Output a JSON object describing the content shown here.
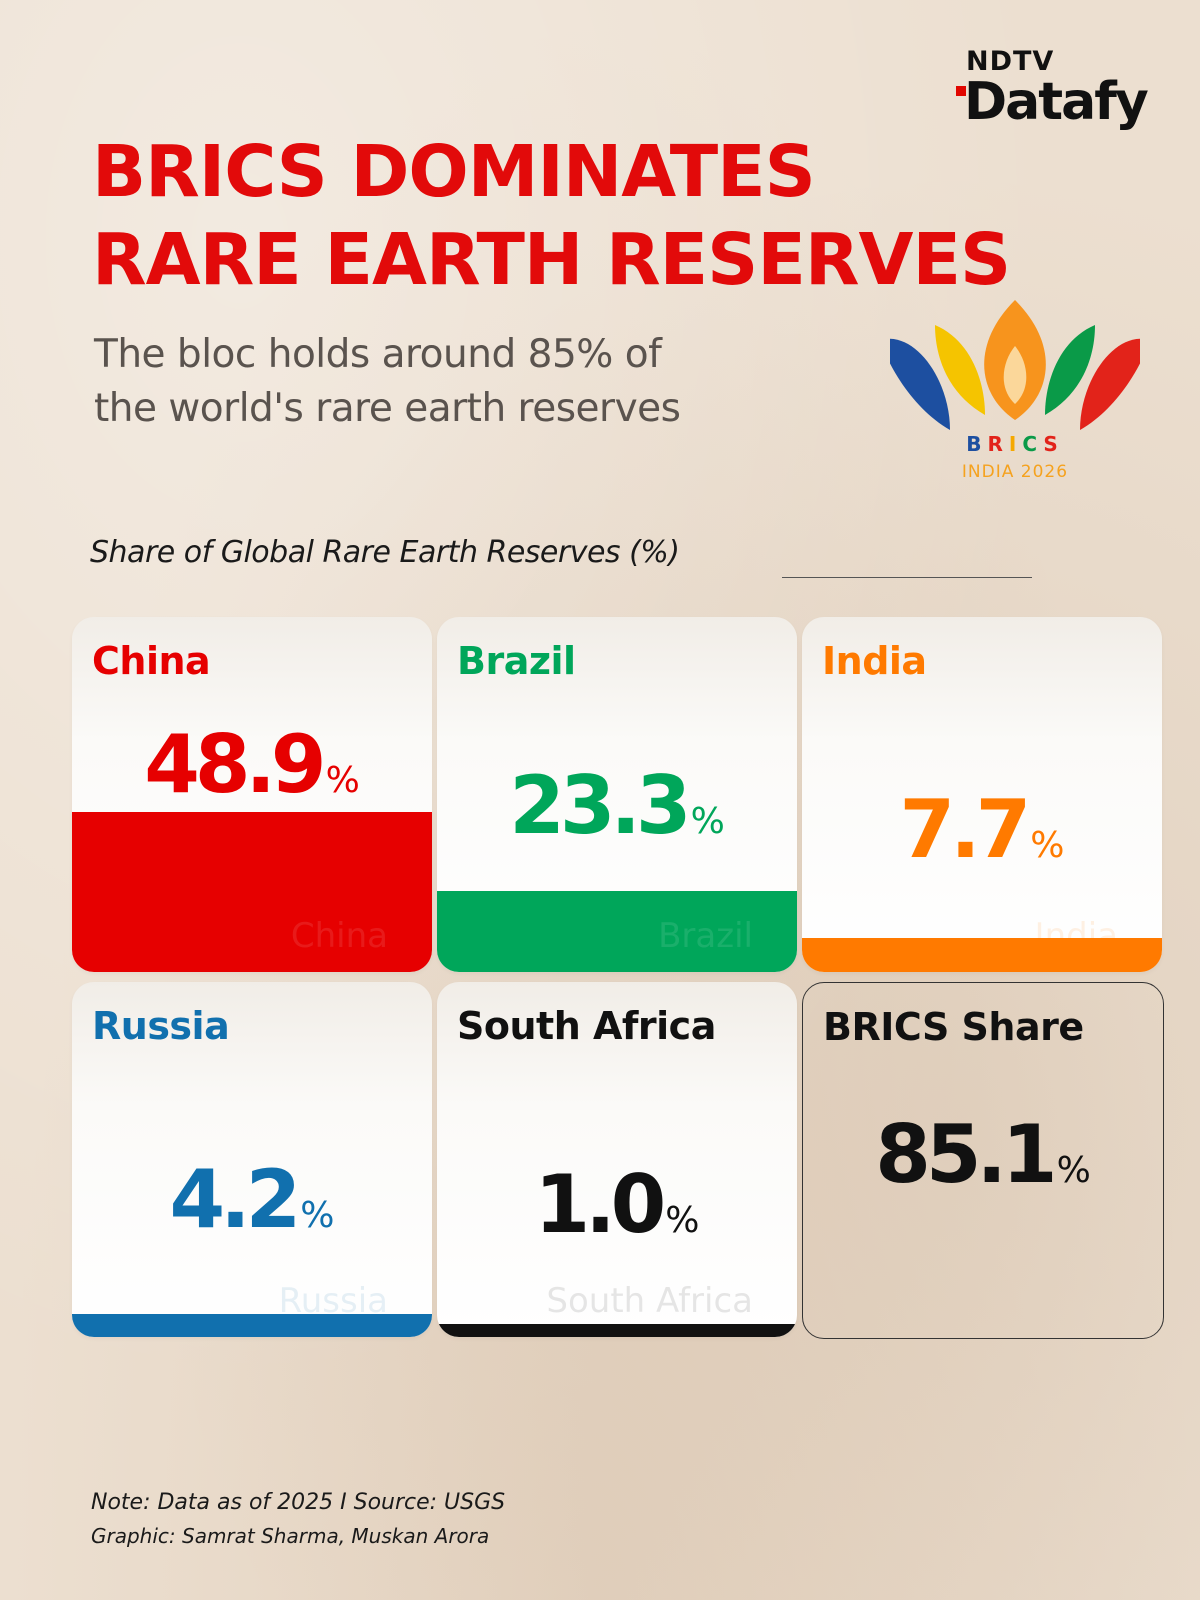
{
  "brand": {
    "top": "NDTV",
    "name": "Datafy"
  },
  "title_lines": [
    "BRICS DOMINATES",
    "RARE EARTH RESERVES"
  ],
  "subtitle_lines": [
    "The bloc holds around 85% of",
    "the world's rare earth reserves"
  ],
  "logo": {
    "letters": [
      "B",
      "R",
      "I",
      "C",
      "S"
    ],
    "subtitle": "INDIA 2026",
    "colors": [
      "#1d4fa0",
      "#f5c400",
      "#f7941d",
      "#0a9a48",
      "#e2231a"
    ]
  },
  "chart_data": {
    "type": "bar",
    "title": "Share of Global Rare Earth Reserves (%)",
    "unit": "%",
    "ylim": [
      0,
      100
    ],
    "categories": [
      "China",
      "Brazil",
      "India",
      "Russia",
      "South Africa"
    ],
    "values": [
      48.9,
      23.3,
      7.7,
      4.2,
      1.0
    ],
    "value_labels": [
      "48.9",
      "23.3",
      "7.7",
      "4.2",
      "1.0"
    ],
    "colors": [
      "#e60000",
      "#00a65a",
      "#ff7a00",
      "#1170ae",
      "#111111"
    ],
    "total": {
      "label": "BRICS Share",
      "value": 85.1,
      "value_label": "85.1"
    }
  },
  "footer": {
    "note": "Note: Data as of 2025 I Source: USGS",
    "credit": "Graphic: Samrat Sharma, Muskan Arora"
  }
}
